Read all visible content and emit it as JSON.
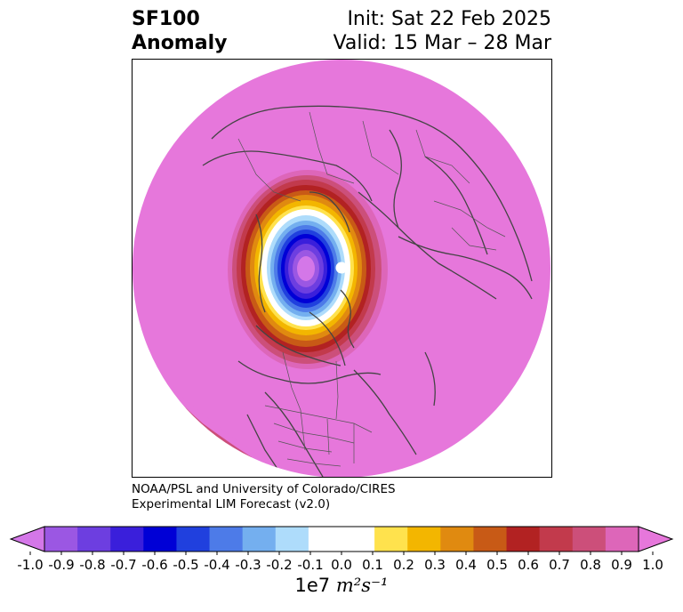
{
  "title": {
    "variable": "SF100",
    "kind": "Anomaly",
    "init": "Init: Sat 22 Feb 2025",
    "valid": "Valid: 15 Mar – 28 Mar"
  },
  "credit": {
    "line1": "NOAA/PSL and University of Colorado/CIRES",
    "line2": "Experimental LIM Forecast (v2.0)"
  },
  "colorbar": {
    "ticks": [
      "-1.0",
      "-0.9",
      "-0.8",
      "-0.7",
      "-0.6",
      "-0.5",
      "-0.4",
      "-0.3",
      "-0.2",
      "-0.1",
      "0.0",
      "0.1",
      "0.2",
      "0.3",
      "0.4",
      "0.5",
      "0.6",
      "0.7",
      "0.8",
      "0.9",
      "1.0"
    ],
    "colors": [
      "#9b57e3",
      "#6d3ee0",
      "#3a1fdb",
      "#0000d6",
      "#2040de",
      "#4d7be8",
      "#74afef",
      "#aedcfb",
      "#ffffff",
      "#ffffff",
      "#ffe24d",
      "#f3b600",
      "#e08a10",
      "#c85a16",
      "#b22222",
      "#c23a4c",
      "#cc4f7a",
      "#dd66b9"
    ],
    "under_color": "#d477e8",
    "over_color": "#e677db",
    "units_prefix": "1e7",
    "units_expr": "m²s⁻¹"
  },
  "map": {
    "projection": "north-polar-stereographic",
    "background_color": "#e677db",
    "anomaly_center": "Arctic / northern Canada",
    "center_value_range": "-1.0 to -0.8"
  }
}
